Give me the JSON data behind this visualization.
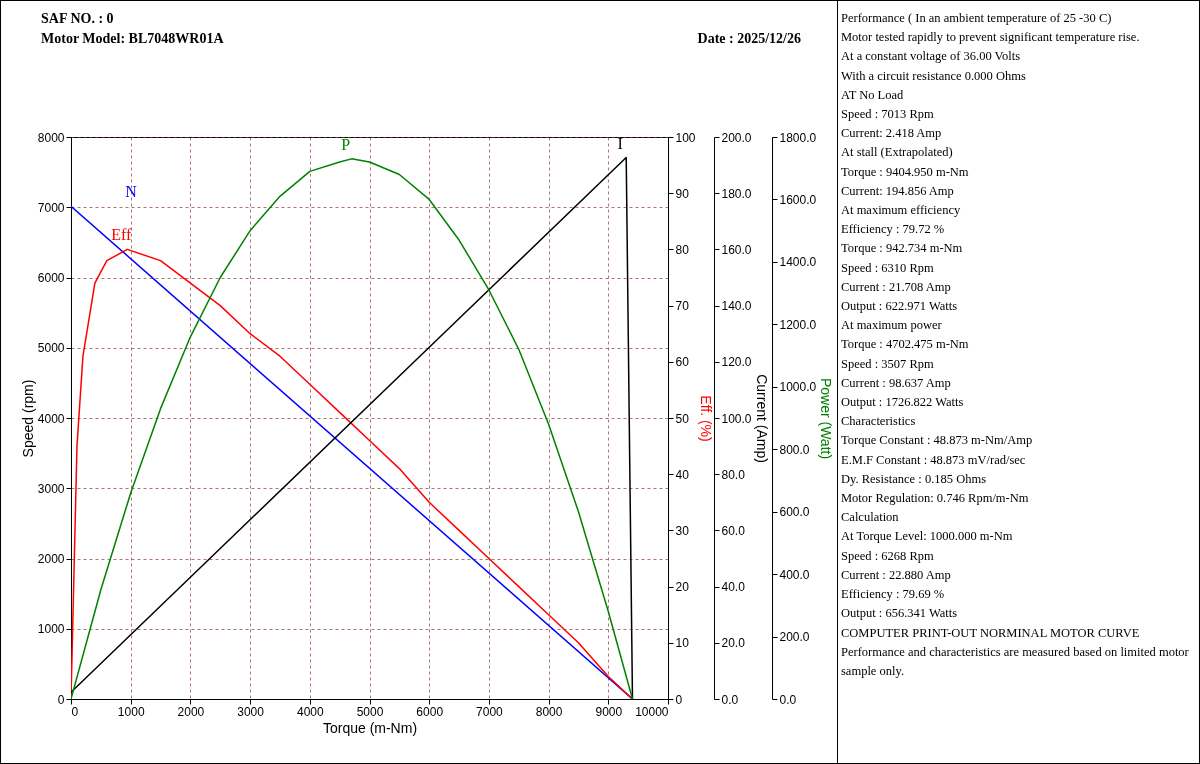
{
  "chart_data": [
    {
      "type": "line",
      "annotations": [
        "SAF NO. : 0",
        "Motor Model: BL7048WR01A",
        "Date : 2025/12/26"
      ],
      "xlabel": "Torque (m-Nm)",
      "ylabel": "Speed (rpm)",
      "y2label": "Eff. (%)",
      "y3label": "Current (Amp)",
      "xlim": [
        0,
        10000
      ],
      "xticks": [
        0,
        1000,
        2000,
        3000,
        4000,
        5000,
        6000,
        7000,
        8000,
        9000,
        10000
      ],
      "ylim": [
        0,
        8000
      ],
      "yticks": [
        0,
        1000,
        2000,
        3000,
        4000,
        5000,
        6000,
        7000,
        8000
      ],
      "y2lim": [
        0,
        100
      ],
      "y2ticks": [
        0,
        10,
        20,
        30,
        40,
        50,
        60,
        70,
        80,
        90,
        100
      ],
      "y3lim": [
        0,
        200
      ],
      "y3ticks": [
        {
          "value": 0,
          "label": "0.0"
        },
        {
          "value": 20,
          "label": "20.0"
        },
        {
          "value": 40,
          "label": "40.0"
        },
        {
          "value": 60,
          "label": "60.0"
        },
        {
          "value": 80,
          "label": "80.0"
        },
        {
          "value": 100,
          "label": "100.0"
        },
        {
          "value": 120,
          "label": "120.0"
        },
        {
          "value": 140,
          "label": "140.0"
        },
        {
          "value": 160,
          "label": "160.0"
        },
        {
          "value": 180,
          "label": "180.0"
        },
        {
          "value": 200,
          "label": "200.0"
        }
      ],
      "grid": true,
      "series": [
        {
          "name": "N",
          "color": "#0000ff",
          "axis": "y",
          "x": [
            0,
            9405
          ],
          "values": [
            7013,
            0
          ]
        },
        {
          "name": "Eff",
          "color": "#ff0000",
          "axis": "y2",
          "x": [
            0,
            100,
            200,
            400,
            600,
            943,
            1500,
            2000,
            2500,
            3000,
            3500,
            4000,
            4500,
            5000,
            5500,
            6000,
            6500,
            7000,
            7500,
            8000,
            8500,
            9000,
            9405
          ],
          "values": [
            0,
            45,
            61,
            74,
            78,
            80,
            78,
            74,
            70,
            65,
            61,
            56,
            51,
            46,
            41,
            35,
            30,
            25,
            20,
            15,
            10,
            4,
            0
          ]
        },
        {
          "name": "I",
          "color": "#000000",
          "axis": "y3",
          "x": [
            0,
            9300,
            9405
          ],
          "values": [
            2.4,
            192.7,
            0
          ]
        }
      ]
    },
    {
      "type": "line",
      "ylabel": "Power (Watt)",
      "xlim": [
        0,
        10000
      ],
      "tick_labels": "y",
      "ylim": [
        0,
        1800
      ],
      "yticks": [
        {
          "value": 0,
          "label": "0.0"
        },
        {
          "value": 200,
          "label": "200.0"
        },
        {
          "value": 400,
          "label": "400.0"
        },
        {
          "value": 600,
          "label": "600.0"
        },
        {
          "value": 800,
          "label": "800.0"
        },
        {
          "value": 1000,
          "label": "1000.0"
        },
        {
          "value": 1200,
          "label": "1200.0"
        },
        {
          "value": 1400,
          "label": "1400.0"
        },
        {
          "value": 1600,
          "label": "1600.0"
        },
        {
          "value": 1800,
          "label": "1800.0"
        }
      ],
      "series": [
        {
          "name": "P",
          "color": "#008000",
          "x": [
            0,
            500,
            1000,
            1500,
            2000,
            2500,
            3000,
            3500,
            4000,
            4500,
            4700,
            5000,
            5500,
            6000,
            6500,
            7000,
            7500,
            8000,
            8500,
            9000,
            9405
          ],
          "values": [
            0,
            350,
            660,
            930,
            1160,
            1350,
            1500,
            1610,
            1690,
            1720,
            1730,
            1720,
            1680,
            1600,
            1470,
            1310,
            1120,
            880,
            600,
            280,
            0
          ]
        }
      ]
    },
    {
      "type": "other",
      "annotations": [
        "Performance ( In an ambient temperature of 25 -30 C)",
        "Motor tested rapidly to prevent significant temperature rise.",
        "At a constant voltage of 36.00 Volts",
        "With a circuit resistance 0.000 Ohms",
        "AT No Load",
        "Speed : 7013 Rpm",
        "Current: 2.418 Amp",
        "At stall (Extrapolated)",
        "Torque : 9404.950 m-Nm",
        "Current: 194.856 Amp",
        "At maximum efficiency",
        "Efficiency : 79.72 %",
        "Torque : 942.734 m-Nm",
        "Speed : 6310 Rpm",
        "Current : 21.708 Amp",
        "Output : 622.971 Watts",
        "At maximum power",
        "Torque : 4702.475 m-Nm",
        "Speed : 3507 Rpm",
        "Current : 98.637 Amp",
        "Output : 1726.822 Watts",
        "Characteristics",
        "Torque Constant : 48.873 m-Nm/Amp",
        "E.M.F Constant : 48.873 mV/rad/sec",
        "Dy. Resistance : 0.185 Ohms",
        "Motor Regulation: 0.746 Rpm/m-Nm",
        "Calculation",
        "At Torque Level: 1000.000 m-Nm",
        "Speed : 6268 Rpm",
        "Current : 22.880 Amp",
        "Efficiency : 79.69 %",
        "Output : 656.341 Watts",
        "COMPUTER PRINT-OUT NORMINAL MOTOR CURVE",
        "Performance and characteristics are measured based on limited motor sample only."
      ]
    }
  ]
}
